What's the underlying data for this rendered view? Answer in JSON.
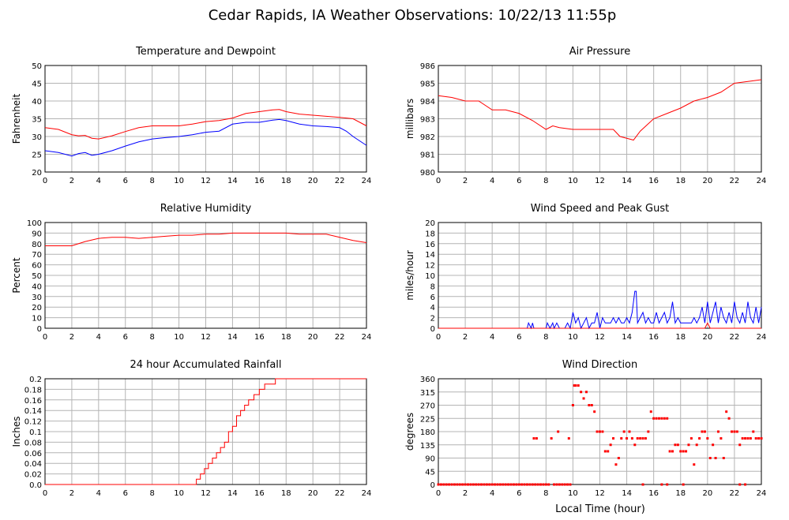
{
  "page_title": "Cedar Rapids, IA Weather Observations: 10/22/13 11:55p",
  "x_axis_label": "Local Time (hour)",
  "colors": {
    "red": "#ff0000",
    "blue": "#0000ff",
    "grid": "#b4b4b4"
  },
  "chart_data": [
    {
      "id": "temp",
      "type": "line",
      "title": "Temperature and Dewpoint",
      "ylabel": "Fahrenheit",
      "xlim": [
        0,
        24
      ],
      "ylim": [
        20,
        50
      ],
      "yticks": [
        20,
        25,
        30,
        35,
        40,
        45,
        50
      ],
      "xticks": [
        0,
        2,
        4,
        6,
        8,
        10,
        12,
        14,
        16,
        18,
        20,
        22,
        24
      ],
      "grid": true,
      "series": [
        {
          "color": "#ff0000",
          "x": [
            0,
            1,
            2,
            2.5,
            3,
            3.5,
            4,
            5,
            6,
            7,
            8,
            9,
            10,
            11,
            12,
            13,
            14,
            15,
            16,
            17,
            17.5,
            18,
            19,
            20,
            21,
            22,
            23,
            24
          ],
          "y": [
            32.5,
            32,
            30.5,
            30.2,
            30.3,
            29.5,
            29.3,
            30.2,
            31.4,
            32.5,
            33,
            33,
            33,
            33.5,
            34.2,
            34.5,
            35.2,
            36.5,
            37,
            37.5,
            37.6,
            37,
            36.3,
            36,
            35.7,
            35.4,
            35,
            33
          ]
        },
        {
          "color": "#0000ff",
          "x": [
            0,
            1,
            2,
            2.5,
            3,
            3.5,
            4,
            5,
            6,
            7,
            8,
            9,
            10,
            11,
            12,
            13,
            14,
            15,
            16,
            17,
            17.5,
            18,
            19,
            20,
            21,
            22,
            22.5,
            23,
            24
          ],
          "y": [
            26,
            25.5,
            24.5,
            25.2,
            25.5,
            24.7,
            25,
            26,
            27.3,
            28.5,
            29.3,
            29.7,
            30,
            30.5,
            31.2,
            31.5,
            33.5,
            34,
            34,
            34.6,
            34.8,
            34.5,
            33.5,
            33,
            32.8,
            32.5,
            31.5,
            30,
            27.5
          ]
        }
      ]
    },
    {
      "id": "pressure",
      "type": "line",
      "title": "Air Pressure",
      "ylabel": "millibars",
      "xlim": [
        0,
        24
      ],
      "ylim": [
        980,
        986
      ],
      "yticks": [
        980,
        981,
        982,
        983,
        984,
        985,
        986
      ],
      "xticks": [
        0,
        2,
        4,
        6,
        8,
        10,
        12,
        14,
        16,
        18,
        20,
        22,
        24
      ],
      "grid": true,
      "series": [
        {
          "color": "#ff0000",
          "x": [
            0,
            1,
            2,
            3,
            4,
            5,
            6,
            7,
            8,
            8.5,
            9,
            10,
            11,
            12,
            13,
            13.5,
            14,
            14.5,
            15,
            16,
            17,
            18,
            19,
            20,
            21,
            22,
            23,
            24
          ],
          "y": [
            984.3,
            984.2,
            984.0,
            984.0,
            983.5,
            983.5,
            983.3,
            982.9,
            982.4,
            982.6,
            982.5,
            982.4,
            982.4,
            982.4,
            982.4,
            982.0,
            981.9,
            981.8,
            982.3,
            983.0,
            983.3,
            983.6,
            984.0,
            984.2,
            984.5,
            985.0,
            985.1,
            985.2
          ]
        }
      ]
    },
    {
      "id": "rh",
      "type": "line",
      "title": "Relative Humidity",
      "ylabel": "Percent",
      "xlim": [
        0,
        24
      ],
      "ylim": [
        0,
        100
      ],
      "yticks": [
        0,
        10,
        20,
        30,
        40,
        50,
        60,
        70,
        80,
        90,
        100
      ],
      "xticks": [
        0,
        2,
        4,
        6,
        8,
        10,
        12,
        14,
        16,
        18,
        20,
        22,
        24
      ],
      "grid": true,
      "series": [
        {
          "color": "#ff0000",
          "x": [
            0,
            1,
            2,
            3,
            4,
            5,
            6,
            7,
            8,
            9,
            10,
            11,
            12,
            13,
            14,
            15,
            16,
            17,
            18,
            19,
            20,
            21,
            22,
            23,
            24
          ],
          "y": [
            78,
            78,
            78,
            82,
            85,
            86,
            86,
            85,
            86,
            87,
            88,
            88,
            89,
            89,
            90,
            90,
            90,
            90,
            90,
            89,
            89,
            89,
            86,
            83,
            81
          ]
        }
      ]
    },
    {
      "id": "wind",
      "type": "line",
      "title": "Wind Speed and Peak Gust",
      "ylabel": "miles/hour",
      "xlim": [
        0,
        24
      ],
      "ylim": [
        0,
        20
      ],
      "yticks": [
        0,
        2,
        4,
        6,
        8,
        10,
        12,
        14,
        16,
        18,
        20
      ],
      "xticks": [
        0,
        2,
        4,
        6,
        8,
        10,
        12,
        14,
        16,
        18,
        20,
        22,
        24
      ],
      "grid": true,
      "series": [
        {
          "color": "#0000ff",
          "x": [
            0,
            6.6,
            6.7,
            6.9,
            7,
            7.1,
            7.3,
            8,
            8.1,
            8.3,
            8.5,
            8.6,
            8.8,
            9,
            9.4,
            9.6,
            9.8,
            10,
            10.2,
            10.4,
            10.6,
            10.8,
            11,
            11.2,
            11.4,
            11.6,
            11.8,
            12,
            12.2,
            12.4,
            12.6,
            12.8,
            13,
            13.2,
            13.4,
            13.6,
            13.8,
            14,
            14.2,
            14.4,
            14.6,
            14.7,
            14.8,
            15,
            15.2,
            15.4,
            15.6,
            15.8,
            16,
            16.2,
            16.4,
            16.6,
            16.8,
            17,
            17.2,
            17.4,
            17.6,
            17.8,
            18,
            18.2,
            18.4,
            18.6,
            18.8,
            19,
            19.2,
            19.4,
            19.6,
            19.8,
            20,
            20.2,
            20.4,
            20.6,
            20.8,
            21,
            21.2,
            21.4,
            21.6,
            21.8,
            22,
            22.2,
            22.4,
            22.6,
            22.8,
            23,
            23.2,
            23.4,
            23.6,
            23.8,
            24
          ],
          "y": [
            0,
            0,
            1,
            0,
            1,
            0,
            0,
            0,
            1,
            0,
            1,
            0,
            1,
            0,
            0,
            1,
            0,
            3,
            1,
            2,
            0,
            1,
            2,
            0,
            1,
            1,
            3,
            0,
            2,
            1,
            1,
            1,
            2,
            1,
            2,
            1,
            1,
            2,
            1,
            3,
            7,
            7,
            1,
            2,
            3,
            1,
            2,
            1,
            1,
            3,
            1,
            2,
            3,
            1,
            2,
            5,
            1,
            2,
            1,
            1,
            1,
            1,
            1,
            2,
            1,
            2,
            4,
            1,
            5,
            1,
            3,
            5,
            1,
            4,
            2,
            1,
            3,
            1,
            5,
            2,
            1,
            3,
            1,
            5,
            2,
            1,
            4,
            1,
            4
          ]
        },
        {
          "color": "#ff0000",
          "x": [
            0,
            19.8,
            20,
            20.2,
            24
          ],
          "y": [
            0,
            0,
            1,
            0,
            0
          ]
        }
      ]
    },
    {
      "id": "rain",
      "type": "line",
      "title": "24 hour Accumulated Rainfall",
      "ylabel": "Inches",
      "xlim": [
        0,
        24
      ],
      "ylim": [
        0,
        0.2
      ],
      "yticks": [
        0,
        0.02,
        0.04,
        0.06,
        0.08,
        0.1,
        0.12,
        0.14,
        0.16,
        0.18,
        0.2
      ],
      "ytick_labels": [
        "0.0",
        "0.02",
        "0.04",
        "0.06",
        "0.08",
        "0.1",
        "0.12",
        "0.14",
        "0.16",
        "0.18",
        "0.2"
      ],
      "xticks": [
        0,
        2,
        4,
        6,
        8,
        10,
        12,
        14,
        16,
        18,
        20,
        22,
        24
      ],
      "grid": true,
      "step": true,
      "series": [
        {
          "color": "#ff0000",
          "x": [
            0,
            11,
            11.3,
            11.6,
            11.9,
            12.2,
            12.5,
            12.8,
            13.1,
            13.4,
            13.7,
            14.0,
            14.3,
            14.6,
            14.9,
            15.2,
            15.6,
            16.0,
            16.4,
            17.2,
            24
          ],
          "y": [
            0,
            0,
            0.01,
            0.02,
            0.03,
            0.04,
            0.05,
            0.06,
            0.07,
            0.08,
            0.1,
            0.11,
            0.13,
            0.14,
            0.15,
            0.16,
            0.17,
            0.18,
            0.19,
            0.2,
            0.2
          ]
        }
      ]
    },
    {
      "id": "dir",
      "type": "scatter",
      "title": "Wind Direction",
      "ylabel": "degrees",
      "xlim": [
        0,
        24
      ],
      "ylim": [
        0,
        360
      ],
      "yticks": [
        0,
        45,
        90,
        135,
        180,
        225,
        270,
        315,
        360
      ],
      "xticks": [
        0,
        2,
        4,
        6,
        8,
        10,
        12,
        14,
        16,
        18,
        20,
        22,
        24
      ],
      "grid": true,
      "series": [
        {
          "color": "#ff0000",
          "x": [
            7.1,
            7.3,
            8.4,
            8.9,
            9.7,
            10.0,
            10.1,
            10.2,
            10.4,
            10.6,
            10.8,
            11.0,
            11.2,
            11.4,
            11.6,
            11.8,
            12.0,
            12.2,
            12.4,
            12.6,
            12.8,
            13.0,
            13.2,
            13.4,
            13.6,
            13.8,
            14.0,
            14.2,
            14.4,
            14.6,
            14.8,
            15.0,
            15.2,
            15.4,
            15.6,
            15.8,
            16.0,
            16.2,
            16.4,
            16.6,
            16.8,
            17.0,
            17.2,
            17.4,
            17.6,
            17.8,
            18.0,
            18.2,
            18.4,
            18.6,
            18.8,
            19.0,
            19.2,
            19.4,
            19.6,
            19.8,
            20.0,
            20.2,
            20.4,
            20.6,
            20.8,
            21.0,
            21.2,
            21.4,
            21.6,
            21.8,
            22.0,
            22.2,
            22.4,
            22.6,
            22.8,
            23.0,
            23.2,
            23.4,
            23.6,
            23.8,
            24.0
          ],
          "y": [
            157,
            157,
            157,
            180,
            157,
            270,
            337,
            337,
            337,
            315,
            293,
            315,
            270,
            270,
            248,
            180,
            180,
            180,
            113,
            113,
            135,
            157,
            68,
            90,
            157,
            180,
            157,
            180,
            157,
            135,
            157,
            157,
            157,
            157,
            180,
            248,
            225,
            225,
            225,
            225,
            225,
            225,
            113,
            113,
            135,
            135,
            113,
            113,
            113,
            135,
            157,
            68,
            135,
            157,
            180,
            180,
            157,
            90,
            135,
            90,
            180,
            157,
            90,
            248,
            225,
            180,
            180,
            180,
            135,
            157,
            157,
            157,
            157,
            180,
            157,
            157,
            157
          ]
        },
        {
          "color": "#ff0000",
          "x": [
            0,
            0.2,
            0.4,
            0.6,
            0.8,
            1.0,
            1.2,
            1.4,
            1.6,
            1.8,
            2.0,
            2.2,
            2.4,
            2.6,
            2.8,
            3.0,
            3.2,
            3.4,
            3.6,
            3.8,
            4.0,
            4.2,
            4.4,
            4.6,
            4.8,
            5.0,
            5.2,
            5.4,
            5.6,
            5.8,
            6.0,
            6.2,
            6.4,
            6.6,
            6.8,
            7.0,
            7.2,
            7.4,
            7.6,
            7.8,
            8.0,
            8.2,
            8.6,
            8.8,
            9.0,
            9.2,
            9.4,
            9.6,
            9.8,
            15.2,
            16.6,
            17.0,
            18.2,
            22.4,
            22.8
          ],
          "y": [
            0,
            0,
            0,
            0,
            0,
            0,
            0,
            0,
            0,
            0,
            0,
            0,
            0,
            0,
            0,
            0,
            0,
            0,
            0,
            0,
            0,
            0,
            0,
            0,
            0,
            0,
            0,
            0,
            0,
            0,
            0,
            0,
            0,
            0,
            0,
            0,
            0,
            0,
            0,
            0,
            0,
            0,
            0,
            0,
            0,
            0,
            0,
            0,
            0,
            0,
            0,
            0,
            0,
            0,
            0
          ]
        }
      ]
    }
  ]
}
